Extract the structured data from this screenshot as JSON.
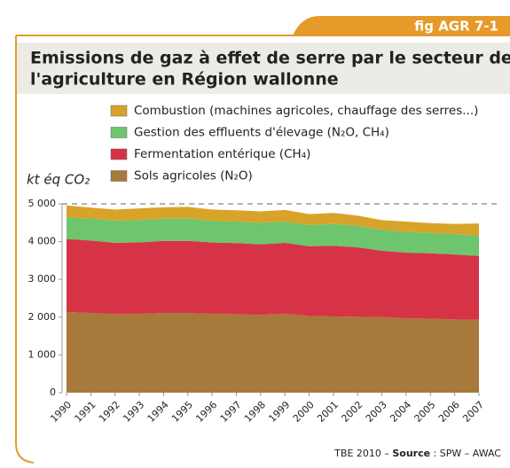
{
  "chart_data": {
    "type": "stacked_area",
    "badge": "fig AGR 7-1",
    "title": [
      "Emissions de gaz à effet de serre par le secteur de",
      "l'agriculture en Région wallonne"
    ],
    "ylabel": "kt éq CO₂",
    "categories": [
      "1990",
      "1991",
      "1992",
      "1993",
      "1994",
      "1995",
      "1996",
      "1997",
      "1998",
      "1999",
      "2000",
      "2001",
      "2002",
      "2003",
      "2004",
      "2005",
      "2006",
      "2007"
    ],
    "series": [
      {
        "name": "Sols agricoles (N₂O)",
        "color": "#a7793a",
        "values": [
          2140,
          2110,
          2080,
          2090,
          2110,
          2110,
          2090,
          2080,
          2060,
          2090,
          2030,
          2020,
          2010,
          2000,
          1970,
          1960,
          1940,
          1930
        ]
      },
      {
        "name": "Fermentation entérique (CH₄)",
        "color": "#d73347",
        "values": [
          1930,
          1920,
          1890,
          1890,
          1910,
          1910,
          1890,
          1880,
          1870,
          1880,
          1850,
          1870,
          1840,
          1760,
          1740,
          1730,
          1720,
          1690
        ]
      },
      {
        "name": "Gestion des effluents d'élevage (N₂O, CH₄)",
        "color": "#6dc56e",
        "values": [
          570,
          580,
          590,
          590,
          590,
          590,
          570,
          570,
          570,
          560,
          560,
          580,
          570,
          550,
          550,
          540,
          540,
          530
        ]
      },
      {
        "name": "Combustion (machines agricoles, chauffage des serres...)",
        "color": "#d8a329",
        "values": [
          320,
          290,
          290,
          310,
          300,
          310,
          300,
          300,
          300,
          310,
          290,
          290,
          270,
          260,
          270,
          260,
          270,
          330
        ]
      }
    ],
    "ylim": [
      0,
      5000
    ],
    "yticks": [
      0,
      {
        "value": 1000,
        "label": "1 000"
      },
      {
        "value": 2000,
        "label": "2 000"
      },
      {
        "value": 3000,
        "label": "3 000"
      },
      {
        "value": 4000,
        "label": "4 000"
      },
      {
        "value": 5000,
        "label": "5 000"
      }
    ],
    "footer": [
      "TBE 2010 – ",
      "Source",
      " : SPW – AWAC"
    ]
  }
}
